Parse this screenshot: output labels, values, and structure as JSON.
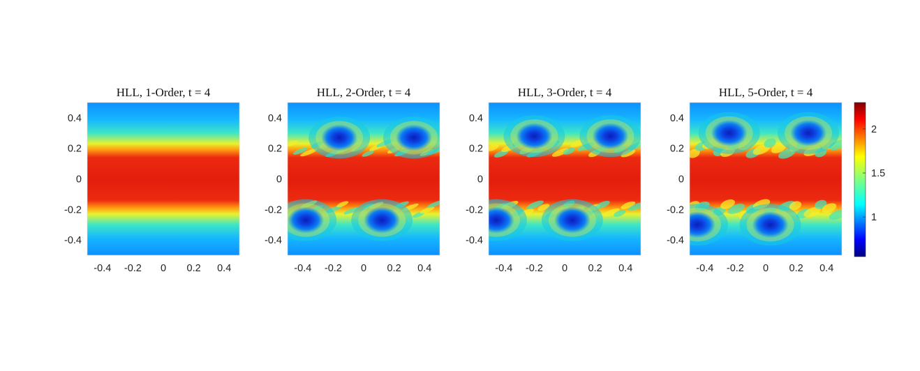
{
  "chart_data": [
    {
      "type": "heatmap",
      "title": "HLL, 1-Order, t = 4",
      "scheme": "HLL",
      "order": 1,
      "time": 4,
      "xlim": [
        -0.5,
        0.5
      ],
      "ylim": [
        -0.5,
        0.5
      ],
      "xticks": [
        -0.4,
        -0.2,
        0,
        0.2,
        0.4
      ],
      "yticks": [
        -0.4,
        -0.2,
        0,
        0.2,
        0.4
      ],
      "xtick_labels": [
        "-0.4",
        "-0.2",
        "0",
        "0.2",
        "0.4"
      ],
      "ytick_labels": [
        "0.4",
        "0.2",
        "0",
        "-0.2",
        "-0.4"
      ],
      "band_value": 2.2,
      "ambient_value": 1.0,
      "vortex_centers": []
    },
    {
      "type": "heatmap",
      "title": "HLL, 2-Order, t = 4",
      "scheme": "HLL",
      "order": 2,
      "time": 4,
      "xlim": [
        -0.5,
        0.5
      ],
      "ylim": [
        -0.5,
        0.5
      ],
      "xticks": [
        -0.4,
        -0.2,
        0,
        0.2,
        0.4
      ],
      "yticks": [
        -0.4,
        -0.2,
        0,
        0.2,
        0.4
      ],
      "xtick_labels": [
        "-0.4",
        "-0.2",
        "0",
        "0.2",
        "0.4"
      ],
      "ytick_labels": [
        "0.4",
        "0.2",
        "0",
        "-0.2",
        "-0.4"
      ],
      "band_value": 2.2,
      "ambient_value": 1.0,
      "vortex_centers": [
        [
          -0.16,
          0.27
        ],
        [
          0.33,
          0.27
        ],
        [
          -0.38,
          -0.27
        ],
        [
          0.12,
          -0.27
        ]
      ]
    },
    {
      "type": "heatmap",
      "title": "HLL, 3-Order, t = 4",
      "scheme": "HLL",
      "order": 3,
      "time": 4,
      "xlim": [
        -0.5,
        0.5
      ],
      "ylim": [
        -0.5,
        0.5
      ],
      "xticks": [
        -0.4,
        -0.2,
        0,
        0.2,
        0.4
      ],
      "yticks": [
        -0.4,
        -0.2,
        0,
        0.2,
        0.4
      ],
      "xtick_labels": [
        "-0.4",
        "-0.2",
        "0",
        "0.2",
        "0.4"
      ],
      "ytick_labels": [
        "0.4",
        "0.2",
        "0",
        "-0.2",
        "-0.4"
      ],
      "band_value": 2.2,
      "ambient_value": 1.0,
      "vortex_centers": [
        [
          -0.2,
          0.28
        ],
        [
          0.3,
          0.28
        ],
        [
          -0.45,
          -0.27
        ],
        [
          0.05,
          -0.27
        ]
      ]
    },
    {
      "type": "heatmap",
      "title": "HLL, 5-Order, t = 4",
      "scheme": "HLL",
      "order": 5,
      "time": 4,
      "xlim": [
        -0.5,
        0.5
      ],
      "ylim": [
        -0.5,
        0.5
      ],
      "xticks": [
        -0.4,
        -0.2,
        0,
        0.2,
        0.4
      ],
      "yticks": [
        -0.4,
        -0.2,
        0,
        0.2,
        0.4
      ],
      "xtick_labels": [
        "-0.4",
        "-0.2",
        "0",
        "0.2",
        "0.4"
      ],
      "ytick_labels": [
        "0.4",
        "0.2",
        "0",
        "-0.2",
        "-0.4"
      ],
      "band_value": 2.2,
      "ambient_value": 1.0,
      "vortex_centers": [
        [
          -0.24,
          0.3
        ],
        [
          0.28,
          0.3
        ],
        [
          -0.45,
          -0.3
        ],
        [
          0.03,
          -0.3
        ]
      ]
    }
  ],
  "colorbar": {
    "colormap": "jet",
    "range": [
      0.55,
      2.3
    ],
    "ticks": [
      1,
      1.5,
      2
    ],
    "tick_labels": [
      "1",
      "1.5",
      "2"
    ]
  }
}
